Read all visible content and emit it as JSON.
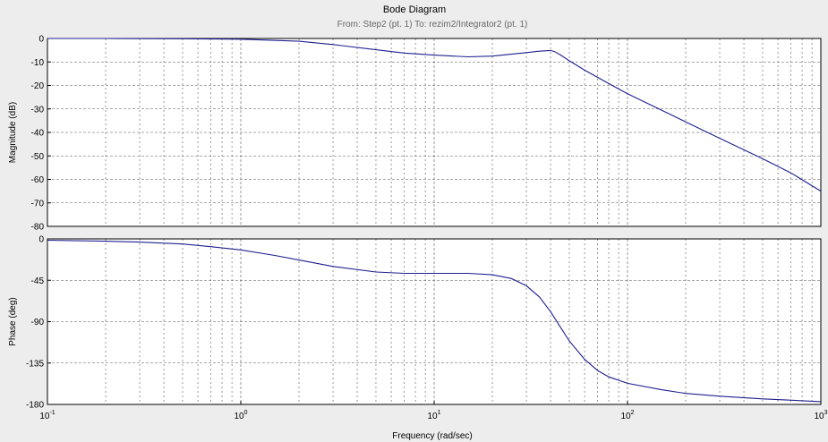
{
  "chart_data": {
    "type": "line",
    "title": "Bode Diagram",
    "subtitle": "From: Step2 (pt. 1)  To: rezim2/Integrator2 (pt. 1)",
    "xlabel": "Frequency  (rad/sec)",
    "xscale": "log",
    "xlim": [
      0.1,
      1000
    ],
    "x_ticks": [
      {
        "base": "10",
        "exp": "-1"
      },
      {
        "base": "10",
        "exp": "0"
      },
      {
        "base": "10",
        "exp": "1"
      },
      {
        "base": "10",
        "exp": "2"
      },
      {
        "base": "10",
        "exp": "3"
      }
    ],
    "grid": true,
    "colors": {
      "line": "#1f1f8f",
      "plot_bg": "#ffffff",
      "figure_bg": "#ededed",
      "grid": "#555555"
    },
    "subplots": [
      {
        "name": "magnitude",
        "ylabel": "Magnitude (dB)",
        "ylim": [
          -80,
          0
        ],
        "yticks": [
          0,
          -10,
          -20,
          -30,
          -40,
          -50,
          -60,
          -70,
          -80
        ],
        "series": [
          {
            "x": [
              0.1,
              0.2,
              0.5,
              1,
              2,
              3,
              5,
              7,
              10,
              15,
              20,
              25,
              30,
              35,
              40,
              42,
              45,
              50,
              60,
              80,
              100,
              150,
              200,
              300,
              500,
              700,
              1000
            ],
            "y": [
              0,
              0,
              -0.1,
              -0.3,
              -1.2,
              -2.6,
              -4.8,
              -6.2,
              -7.1,
              -7.8,
              -7.5,
              -6.7,
              -6.0,
              -5.4,
              -5.1,
              -5.6,
              -7.0,
              -9.5,
              -13.5,
              -19.2,
              -23.5,
              -30.5,
              -35.5,
              -42.5,
              -51.2,
              -57.2,
              -65.0
            ]
          }
        ]
      },
      {
        "name": "phase",
        "ylabel": "Phase (deg)",
        "ylim": [
          -180,
          0
        ],
        "yticks": [
          0,
          -45,
          -90,
          -135,
          -180
        ],
        "series": [
          {
            "x": [
              0.1,
              0.2,
              0.3,
              0.5,
              0.7,
              1,
              1.5,
              2,
              3,
              5,
              7,
              10,
              15,
              20,
              25,
              30,
              35,
              40,
              45,
              50,
              60,
              70,
              80,
              100,
              150,
              200,
              300,
              500,
              1000
            ],
            "y": [
              -1.5,
              -2.5,
              -3.5,
              -5.5,
              -8.5,
              -12,
              -18,
              -23,
              -30,
              -36,
              -37.5,
              -37.5,
              -37.5,
              -39,
              -43,
              -51,
              -63,
              -79,
              -96,
              -111,
              -131,
              -143,
              -150,
              -157,
              -164,
              -168,
              -171,
              -174,
              -177
            ]
          }
        ]
      }
    ]
  }
}
